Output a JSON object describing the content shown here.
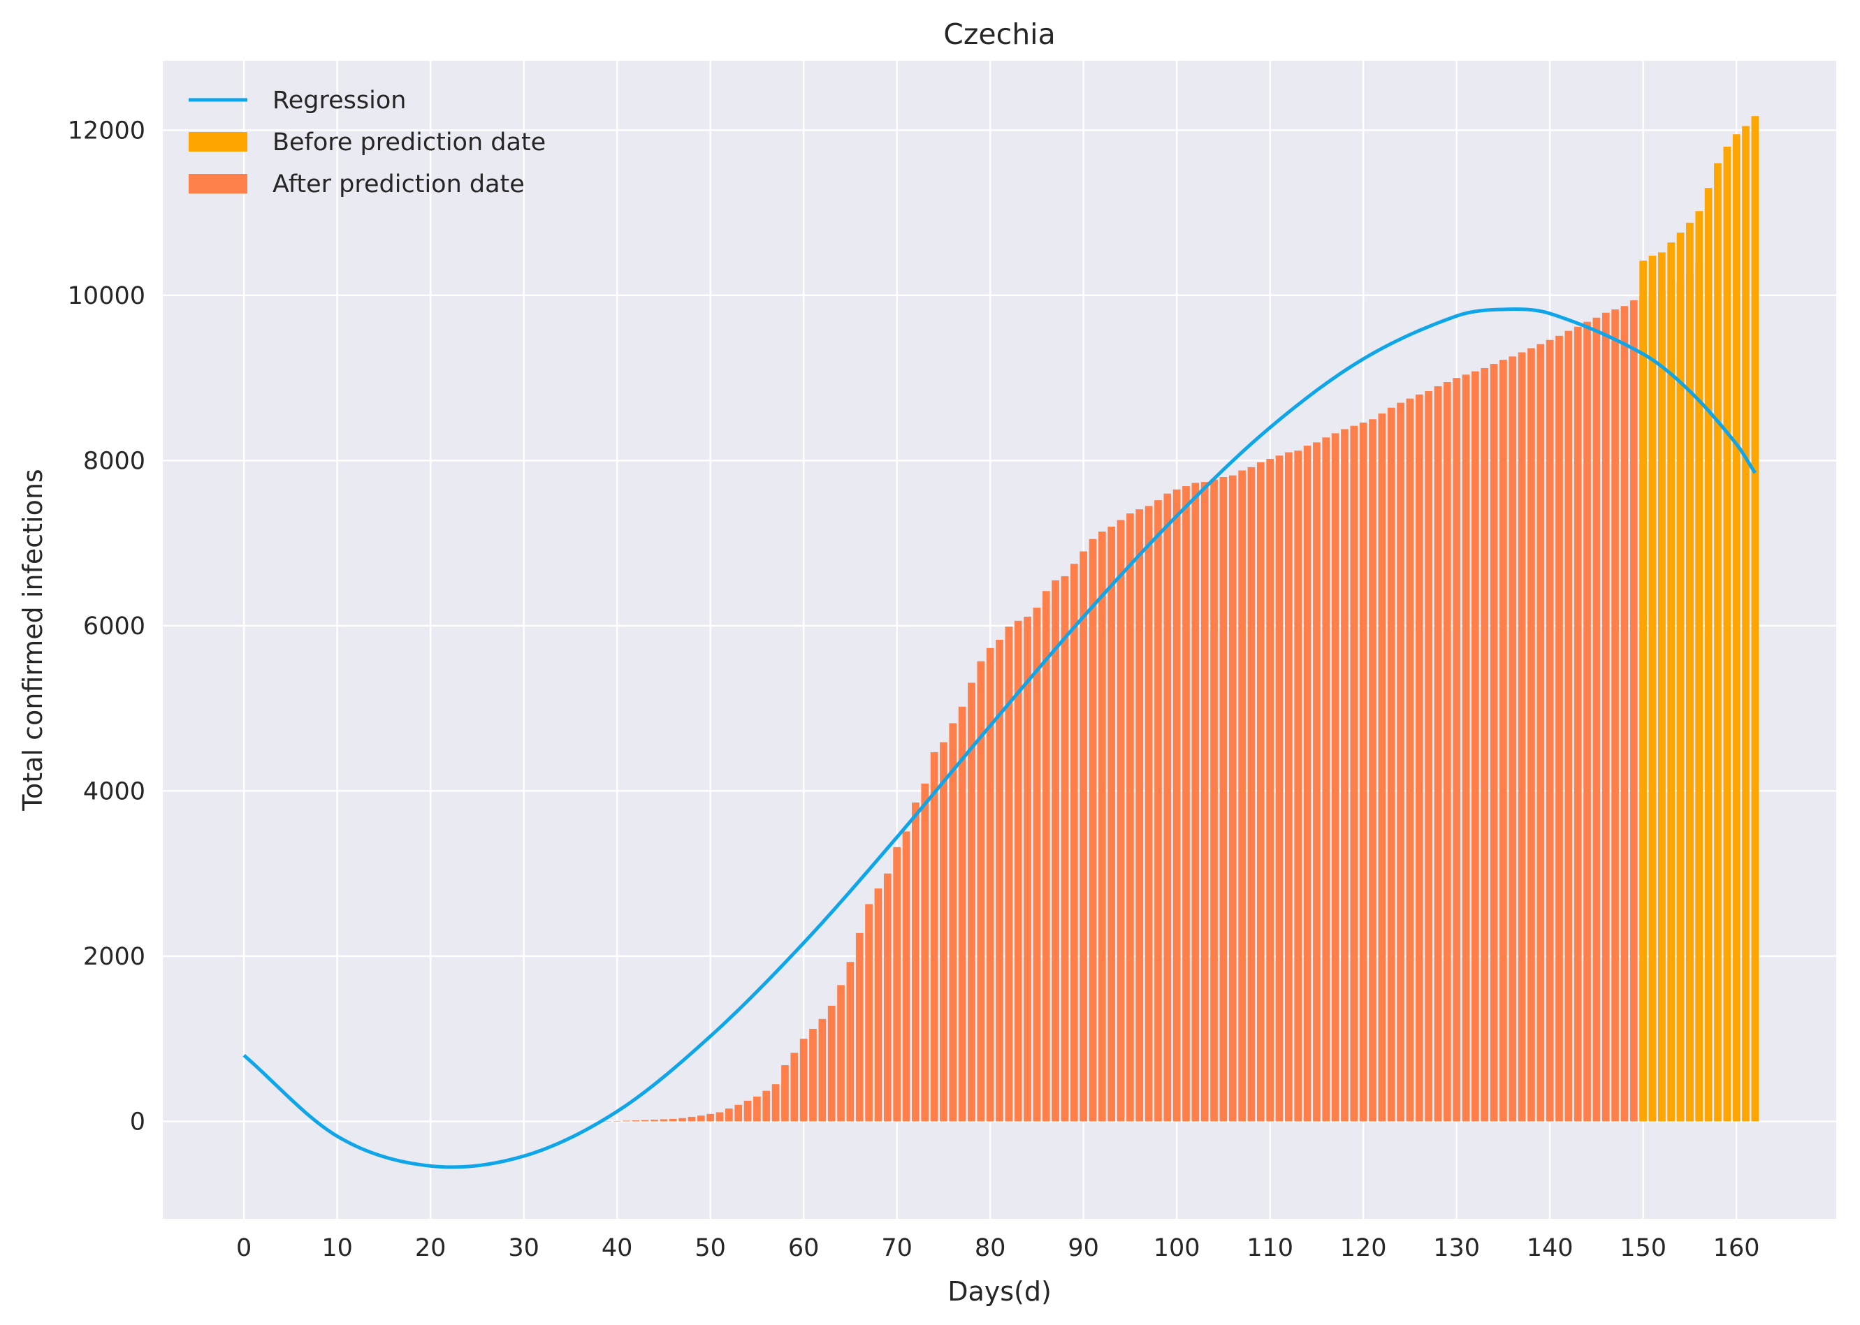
{
  "chart_data": {
    "type": "bar",
    "title": "Czechia",
    "xlabel": "Days(d)",
    "ylabel": "Total confirmed infections",
    "xlim": [
      -8.7,
      170.7
    ],
    "ylim": [
      -1180,
      12840
    ],
    "xticks": [
      0,
      10,
      20,
      30,
      40,
      50,
      60,
      70,
      80,
      90,
      100,
      110,
      120,
      130,
      140,
      150,
      160
    ],
    "yticks": [
      0,
      2000,
      4000,
      6000,
      8000,
      10000,
      12000
    ],
    "grid": true,
    "legend_position": "upper-left",
    "colors": {
      "background": "#EAEAF2",
      "regression": "#0EA5E9",
      "before_prediction": "#FFA500",
      "after_prediction": "#FF7F4A"
    },
    "legend": [
      {
        "label": "Regression",
        "kind": "line",
        "color": "#0EA5E9"
      },
      {
        "label": "Before prediction date",
        "kind": "patch",
        "color": "#FFA500"
      },
      {
        "label": "After prediction date",
        "kind": "patch",
        "color": "#FF7F4A"
      }
    ],
    "series": [
      {
        "name": "After prediction date",
        "x_start": 0,
        "values": [
          0,
          0,
          0,
          0,
          0,
          0,
          0,
          0,
          0,
          0,
          0,
          0,
          0,
          0,
          0,
          0,
          0,
          0,
          0,
          0,
          0,
          0,
          0,
          0,
          0,
          0,
          0,
          0,
          0,
          0,
          0,
          0,
          0,
          0,
          0,
          0,
          0,
          0,
          0,
          3,
          5,
          8,
          12,
          15,
          20,
          25,
          30,
          40,
          55,
          70,
          90,
          110,
          155,
          200,
          250,
          300,
          370,
          450,
          680,
          830,
          1000,
          1120,
          1240,
          1400,
          1650,
          1930,
          2280,
          2630,
          2820,
          3000,
          3320,
          3510,
          3860,
          4090,
          4470,
          4590,
          4820,
          5020,
          5310,
          5570,
          5730,
          5830,
          5990,
          6060,
          6110,
          6220,
          6420,
          6550,
          6600,
          6750,
          6900,
          7050,
          7140,
          7200,
          7280,
          7360,
          7410,
          7450,
          7520,
          7600,
          7650,
          7690,
          7730,
          7740,
          7770,
          7800,
          7820,
          7880,
          7920,
          7980,
          8020,
          8060,
          8100,
          8120,
          8180,
          8220,
          8280,
          8330,
          8380,
          8420,
          8460,
          8500,
          8570,
          8640,
          8700,
          8750,
          8800,
          8840,
          8900,
          8950,
          9000,
          9040,
          9080,
          9120,
          9170,
          9220,
          9260,
          9310,
          9360,
          9410,
          9460,
          9510,
          9570,
          9620,
          9680,
          9730,
          9790,
          9830,
          9870,
          9940,
          10000,
          10030,
          10060,
          10100,
          10150,
          10260,
          10390
        ]
      },
      {
        "name": "Before prediction date",
        "x_start": 150,
        "values": [
          10420,
          10480,
          10520,
          10640,
          10760,
          10880,
          11020,
          11300,
          11600,
          11800,
          11950,
          12050,
          12170
        ]
      }
    ],
    "regression": {
      "name": "Regression",
      "x_range": [
        0,
        162
      ],
      "x": [
        0,
        10,
        20,
        30,
        40,
        50,
        60,
        70,
        80,
        90,
        100,
        110,
        120,
        130,
        135,
        140,
        150,
        155,
        160,
        162
      ],
      "y": [
        800,
        -180,
        -540,
        -420,
        120,
        1030,
        2160,
        3440,
        4790,
        6110,
        7330,
        8400,
        9230,
        9750,
        9830,
        9780,
        9290,
        8840,
        8200,
        7850
      ]
    }
  }
}
